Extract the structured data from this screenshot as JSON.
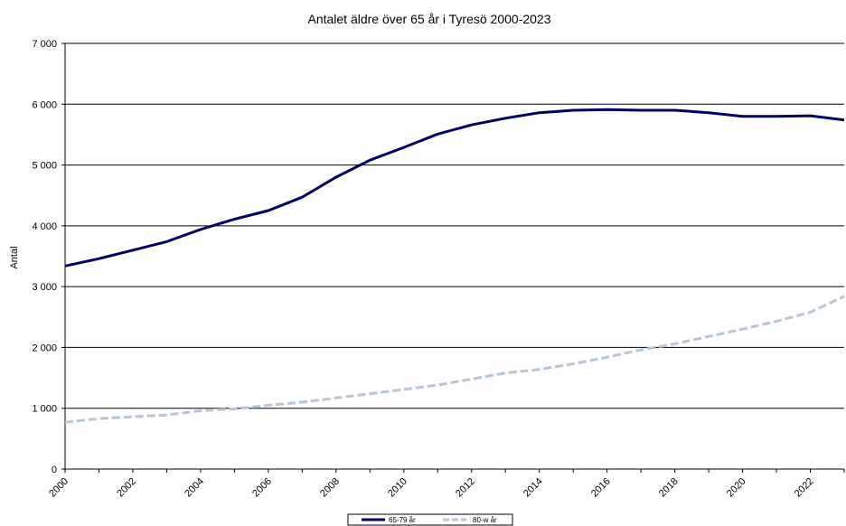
{
  "chart_data": {
    "type": "line",
    "title": "Antalet äldre över 65 år i Tyresö 2000-2023",
    "xlabel": "",
    "ylabel": "Antal",
    "ylim": [
      0,
      7000
    ],
    "yticks": [
      {
        "value": 0,
        "label": "0"
      },
      {
        "value": 1000,
        "label": "1 000"
      },
      {
        "value": 2000,
        "label": "2 000"
      },
      {
        "value": 3000,
        "label": "3 000"
      },
      {
        "value": 4000,
        "label": "4 000"
      },
      {
        "value": 5000,
        "label": "5 000"
      },
      {
        "value": 6000,
        "label": "6 000"
      },
      {
        "value": 7000,
        "label": "7 000"
      }
    ],
    "xticks": [
      "2000",
      "2002",
      "2004",
      "2006",
      "2008",
      "2010",
      "2012",
      "2014",
      "2016",
      "2018",
      "2020",
      "2022"
    ],
    "grid": "horizontal",
    "legend_position": "bottom",
    "x": [
      2000,
      2001,
      2002,
      2003,
      2004,
      2005,
      2006,
      2007,
      2008,
      2009,
      2010,
      2011,
      2012,
      2013,
      2014,
      2015,
      2016,
      2017,
      2018,
      2019,
      2020,
      2021,
      2022,
      2023
    ],
    "series": [
      {
        "name": "65-79 år",
        "color": "#000066",
        "style": "solid",
        "values": [
          3340,
          3460,
          3600,
          3740,
          3940,
          4110,
          4250,
          4470,
          4800,
          5080,
          5290,
          5510,
          5660,
          5770,
          5860,
          5900,
          5910,
          5900,
          5900,
          5860,
          5800,
          5800,
          5810,
          5740
        ]
      },
      {
        "name": "80-w år",
        "color": "#b7c5d8",
        "style": "dashed",
        "values": [
          770,
          830,
          860,
          890,
          960,
          990,
          1050,
          1100,
          1170,
          1240,
          1310,
          1380,
          1480,
          1580,
          1640,
          1730,
          1840,
          1960,
          2060,
          2180,
          2300,
          2430,
          2580,
          2840
        ]
      }
    ]
  }
}
